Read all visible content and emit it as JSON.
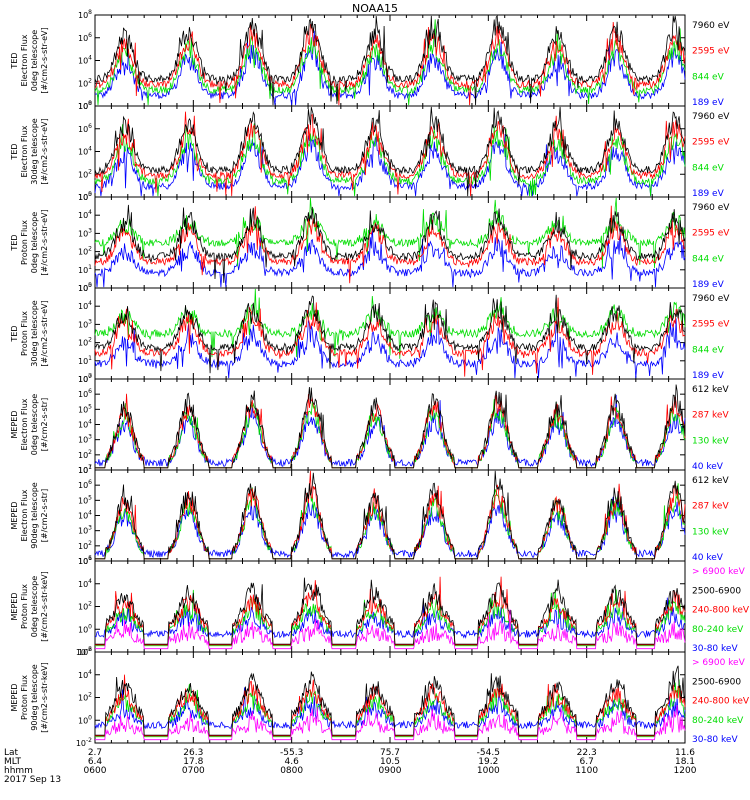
{
  "figure": {
    "title": "NOAA15"
  },
  "panels": [
    {
      "id": "ted-e-0",
      "ylabel": [
        "TED",
        "Electron Flux",
        "0deg telescope",
        "[#/cm2-s-str-eV]"
      ],
      "yticks": [
        "10^0",
        "10^2",
        "10^4",
        "10^6",
        "10^8"
      ],
      "ylim_exp": [
        0,
        8
      ],
      "legend": [
        {
          "label": "7960 eV",
          "color": "#000000"
        },
        {
          "label": "2595 eV",
          "color": "#ff0000"
        },
        {
          "label": "844 eV",
          "color": "#00dd00"
        },
        {
          "label": "189 eV",
          "color": "#0000ff"
        }
      ]
    },
    {
      "id": "ted-e-30",
      "ylabel": [
        "TED",
        "Electron Flux",
        "30deg telescope",
        "[#/cm2-s-str-eV]"
      ],
      "yticks": [
        "10^0",
        "10^2",
        "10^4",
        "10^6",
        "10^8"
      ],
      "ylim_exp": [
        0,
        8
      ],
      "legend": [
        {
          "label": "7960 eV",
          "color": "#000000"
        },
        {
          "label": "2595 eV",
          "color": "#ff0000"
        },
        {
          "label": "844 eV",
          "color": "#00dd00"
        },
        {
          "label": "189 eV",
          "color": "#0000ff"
        }
      ]
    },
    {
      "id": "ted-p-0",
      "ylabel": [
        "TED",
        "Proton Flux",
        "0deg telescope",
        "[#/cm2-s-str-eV]"
      ],
      "yticks": [
        "10^0",
        "10^1",
        "10^2",
        "10^3",
        "10^4",
        "10^5"
      ],
      "ylim_exp": [
        0,
        5
      ],
      "legend": [
        {
          "label": "7960 eV",
          "color": "#000000"
        },
        {
          "label": "2595 eV",
          "color": "#ff0000"
        },
        {
          "label": "844 eV",
          "color": "#00dd00"
        },
        {
          "label": "189 eV",
          "color": "#0000ff"
        }
      ]
    },
    {
      "id": "ted-p-30",
      "ylabel": [
        "TED",
        "Proton Flux",
        "30deg telescope",
        "[#/cm2-s-str-eV]"
      ],
      "yticks": [
        "10^0",
        "10^1",
        "10^2",
        "10^3",
        "10^4",
        "10^5"
      ],
      "ylim_exp": [
        0,
        5
      ],
      "legend": [
        {
          "label": "7960 eV",
          "color": "#000000"
        },
        {
          "label": "2595 eV",
          "color": "#ff0000"
        },
        {
          "label": "844 eV",
          "color": "#00dd00"
        },
        {
          "label": "189 eV",
          "color": "#0000ff"
        }
      ]
    },
    {
      "id": "meped-e-0",
      "ylabel": [
        "MEPED",
        "Electron Flux",
        "0deg telescope",
        "[#/cm2-s-str]"
      ],
      "yticks": [
        "10^1",
        "10^2",
        "10^3",
        "10^4",
        "10^5",
        "10^6",
        "10^7"
      ],
      "ylim_exp": [
        1,
        7
      ],
      "legend": [
        {
          "label": "612 keV",
          "color": "#000000"
        },
        {
          "label": "287 keV",
          "color": "#ff0000"
        },
        {
          "label": "130 keV",
          "color": "#00dd00"
        },
        {
          "label": "40 keV",
          "color": "#0000ff"
        }
      ]
    },
    {
      "id": "meped-e-90",
      "ylabel": [
        "MEPED",
        "Electron Flux",
        "90deg telescope",
        "[#/cm2-s-str]"
      ],
      "yticks": [
        "10^1",
        "10^2",
        "10^3",
        "10^4",
        "10^5",
        "10^6",
        "10^7"
      ],
      "ylim_exp": [
        1,
        7
      ],
      "legend": [
        {
          "label": "612 keV",
          "color": "#000000"
        },
        {
          "label": "287 keV",
          "color": "#ff0000"
        },
        {
          "label": "130 keV",
          "color": "#00dd00"
        },
        {
          "label": "40 keV",
          "color": "#0000ff"
        }
      ]
    },
    {
      "id": "meped-p-0",
      "ylabel": [
        "MEPED",
        "Proton Flux",
        "0deg telescope",
        "[#/cm2-s-str-keV]"
      ],
      "yticks": [
        "10^-2",
        "10^0",
        "10^2",
        "10^4",
        "10^6"
      ],
      "ylim_exp": [
        -2,
        6
      ],
      "legend": [
        {
          "label": "> 6900 keV",
          "color": "#ff00ff"
        },
        {
          "label": "2500-6900",
          "color": "#000000"
        },
        {
          "label": "240-800 keV",
          "color": "#ff0000"
        },
        {
          "label": "80-240 keV",
          "color": "#00dd00"
        },
        {
          "label": "30-80 keV",
          "color": "#0000ff"
        }
      ]
    },
    {
      "id": "meped-p-90",
      "ylabel": [
        "MEPED",
        "Proton Flux",
        "90deg telescope",
        "[#/cm2-s-str-keV]"
      ],
      "yticks": [
        "10^-2",
        "10^0",
        "10^2",
        "10^4",
        "10^6"
      ],
      "ylim_exp": [
        -2,
        6
      ],
      "legend": [
        {
          "label": "> 6900 keV",
          "color": "#ff00ff"
        },
        {
          "label": "2500-6900",
          "color": "#000000"
        },
        {
          "label": "240-800 keV",
          "color": "#ff0000"
        },
        {
          "label": "80-240 keV",
          "color": "#00dd00"
        },
        {
          "label": "30-80 keV",
          "color": "#0000ff"
        }
      ]
    }
  ],
  "x_axis": {
    "row_labels": [
      "Lat",
      "MLT",
      "hhmm",
      "2017 Sep 13"
    ],
    "ticks": [
      {
        "lat": "2.7",
        "mlt": "6.4",
        "hhmm": "0600"
      },
      {
        "lat": "26.3",
        "mlt": "17.8",
        "hhmm": "0700"
      },
      {
        "lat": "-55.3",
        "mlt": "4.6",
        "hhmm": "0800"
      },
      {
        "lat": "75.7",
        "mlt": "10.5",
        "hhmm": "0900"
      },
      {
        "lat": "-54.5",
        "mlt": "19.2",
        "hhmm": "1000"
      },
      {
        "lat": "22.3",
        "mlt": "6.7",
        "hhmm": "1100"
      },
      {
        "lat": "11.6",
        "mlt": "18.1",
        "hhmm": "1200"
      }
    ]
  },
  "chart_data": {
    "type": "line",
    "x_domain": [
      "0600",
      "1200"
    ],
    "passes_utc_hours": [
      6.3,
      6.95,
      7.6,
      8.2,
      8.85,
      9.45,
      10.1,
      10.7,
      11.3,
      11.9
    ],
    "y_scale": "log",
    "grid": false
  }
}
